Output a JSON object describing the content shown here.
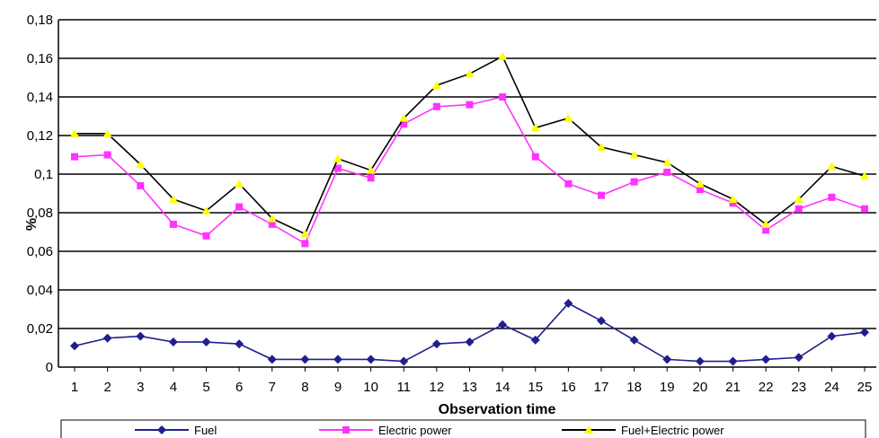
{
  "chart_data": {
    "type": "line",
    "title": "",
    "xlabel": "Observation time",
    "ylabel": "%",
    "categories": [
      "1",
      "2",
      "3",
      "4",
      "5",
      "6",
      "7",
      "8",
      "9",
      "10",
      "11",
      "12",
      "13",
      "14",
      "15",
      "16",
      "17",
      "18",
      "19",
      "20",
      "21",
      "22",
      "23",
      "24",
      "25"
    ],
    "y_ticks": [
      "0",
      "0,02",
      "0,04",
      "0,06",
      "0,08",
      "0,1",
      "0,12",
      "0,14",
      "0,16",
      "0,18"
    ],
    "ylim": [
      0,
      0.18
    ],
    "grid": true,
    "legend_position": "bottom",
    "series": [
      {
        "name": "Fuel",
        "color": "#1f1f8f",
        "marker": "diamond",
        "values": [
          0.011,
          0.015,
          0.016,
          0.013,
          0.013,
          0.012,
          0.004,
          0.004,
          0.004,
          0.004,
          0.003,
          0.012,
          0.013,
          0.022,
          0.014,
          0.033,
          0.024,
          0.014,
          0.004,
          0.003,
          0.003,
          0.004,
          0.005,
          0.016,
          0.018
        ]
      },
      {
        "name": "Electric power",
        "color": "#ff33ff",
        "marker": "square",
        "values": [
          0.109,
          0.11,
          0.094,
          0.074,
          0.068,
          0.083,
          0.074,
          0.064,
          0.103,
          0.098,
          0.126,
          0.135,
          0.136,
          0.14,
          0.109,
          0.095,
          0.089,
          0.096,
          0.101,
          0.092,
          0.085,
          0.071,
          0.082,
          0.088,
          0.082
        ]
      },
      {
        "name": "Fuel+Electric power",
        "color": "#000000",
        "marker_color": "#ffff00",
        "marker": "triangle",
        "values": [
          0.121,
          0.121,
          0.105,
          0.087,
          0.081,
          0.095,
          0.077,
          0.069,
          0.108,
          0.102,
          0.129,
          0.146,
          0.152,
          0.161,
          0.124,
          0.129,
          0.114,
          0.11,
          0.106,
          0.095,
          0.087,
          0.074,
          0.087,
          0.104,
          0.099
        ]
      }
    ]
  }
}
